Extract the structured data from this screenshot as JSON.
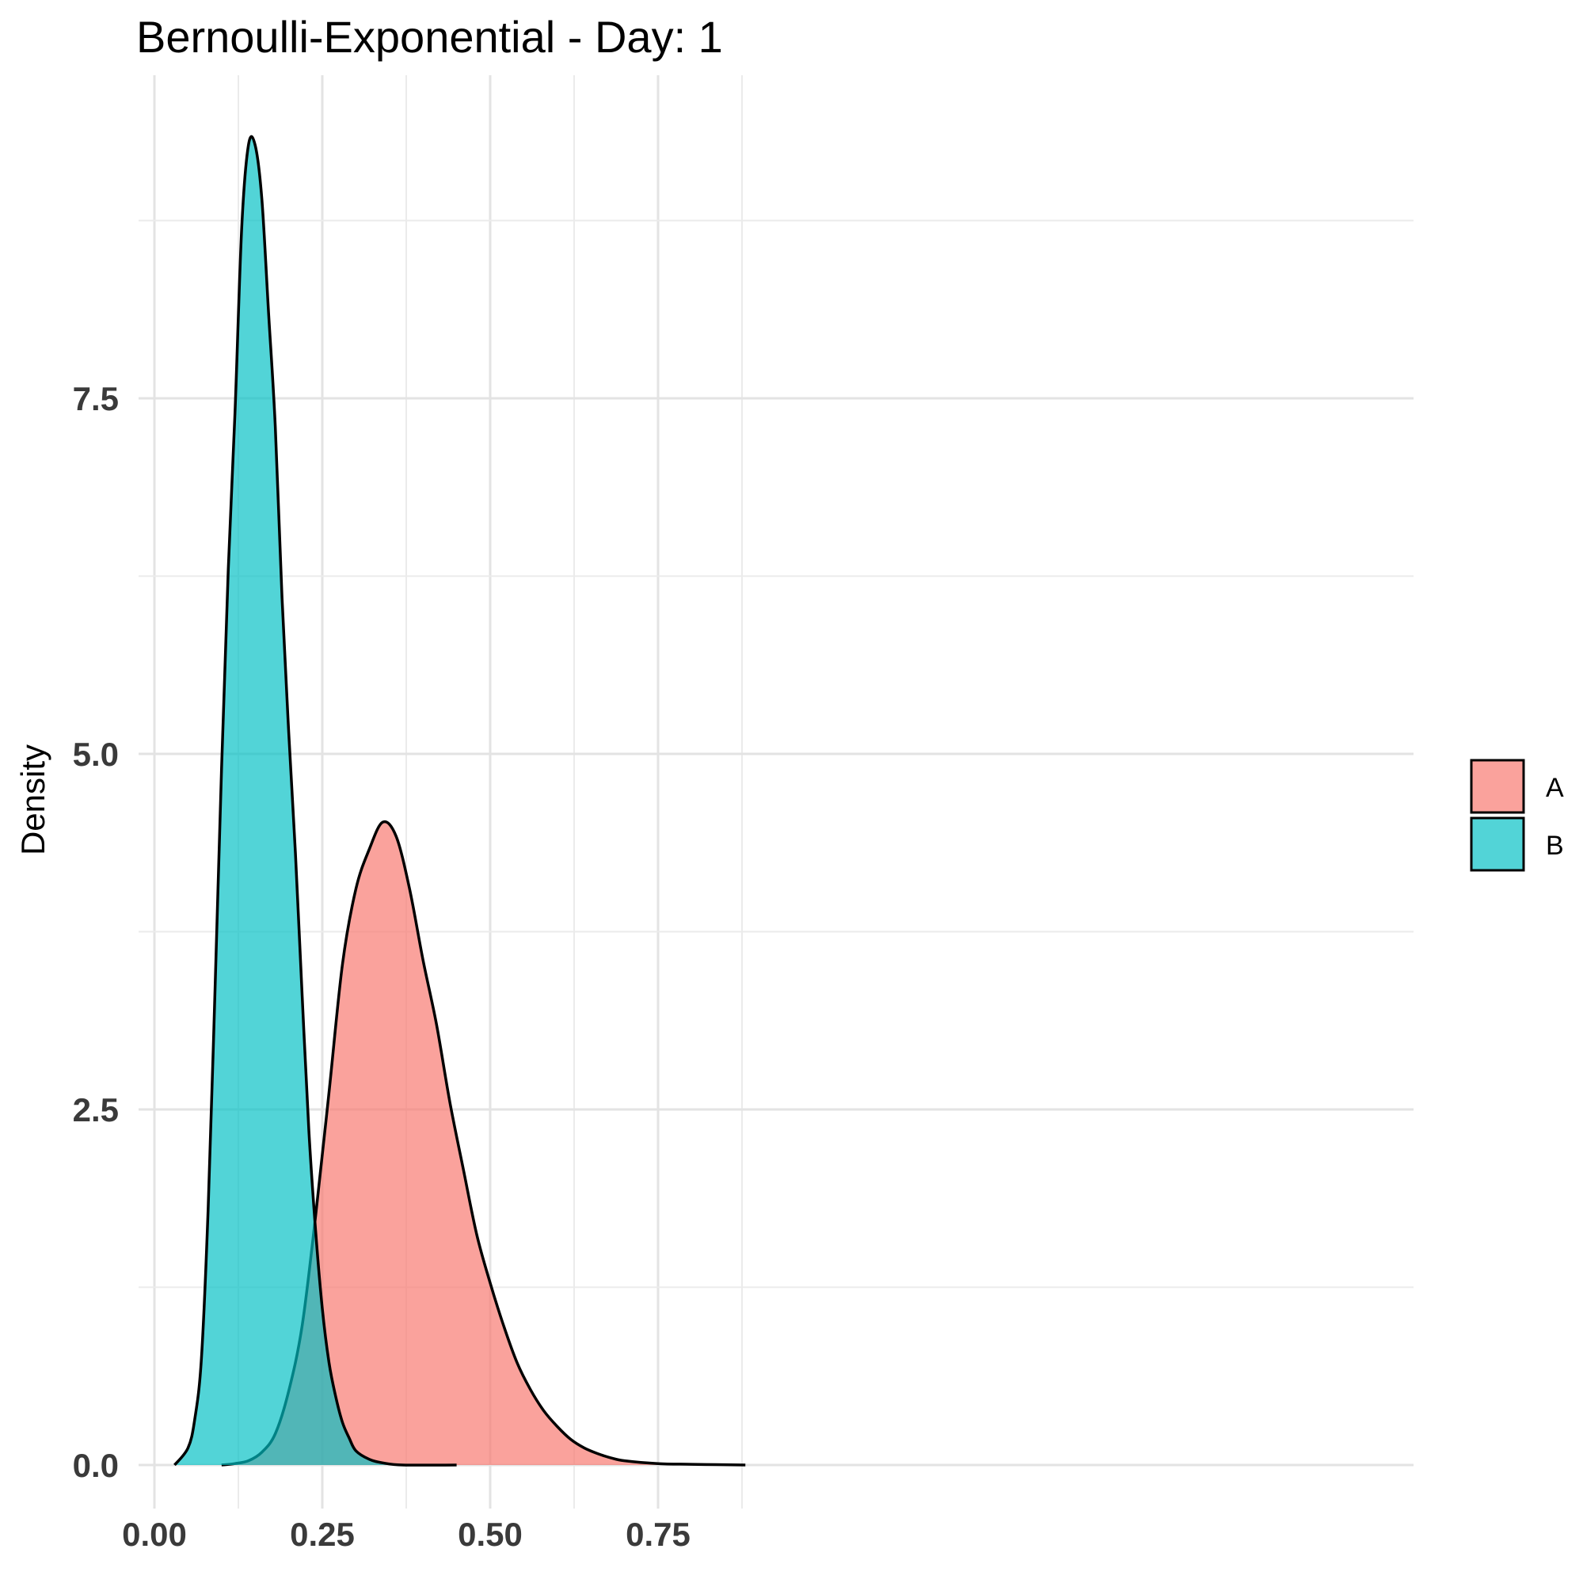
{
  "chart_data": {
    "type": "area",
    "title": "Bernoulli-Exponential - Day: 1",
    "xlabel": "",
    "ylabel": "Density",
    "xlim": [
      0.0,
      0.9
    ],
    "ylim": [
      0,
      9.2
    ],
    "x_ticks": [
      "0.00",
      "0.25",
      "0.50",
      "0.75"
    ],
    "y_ticks": [
      "0.0",
      "2.5",
      "5.0",
      "7.5"
    ],
    "grid": true,
    "legend_position": "right",
    "series": [
      {
        "name": "A",
        "color": "#F8766D",
        "points": [
          [
            0.1,
            0.0
          ],
          [
            0.12,
            0.01
          ],
          [
            0.14,
            0.03
          ],
          [
            0.16,
            0.09
          ],
          [
            0.18,
            0.22
          ],
          [
            0.2,
            0.52
          ],
          [
            0.22,
            0.98
          ],
          [
            0.24,
            1.75
          ],
          [
            0.26,
            2.62
          ],
          [
            0.28,
            3.52
          ],
          [
            0.3,
            4.05
          ],
          [
            0.32,
            4.33
          ],
          [
            0.34,
            4.52
          ],
          [
            0.36,
            4.42
          ],
          [
            0.38,
            4.05
          ],
          [
            0.4,
            3.55
          ],
          [
            0.42,
            3.1
          ],
          [
            0.44,
            2.55
          ],
          [
            0.46,
            2.08
          ],
          [
            0.48,
            1.62
          ],
          [
            0.5,
            1.28
          ],
          [
            0.52,
            0.98
          ],
          [
            0.54,
            0.72
          ],
          [
            0.56,
            0.53
          ],
          [
            0.58,
            0.38
          ],
          [
            0.6,
            0.27
          ],
          [
            0.62,
            0.18
          ],
          [
            0.64,
            0.12
          ],
          [
            0.66,
            0.08
          ],
          [
            0.68,
            0.05
          ],
          [
            0.7,
            0.03
          ],
          [
            0.75,
            0.01
          ],
          [
            0.8,
            0.005
          ],
          [
            0.88,
            0.0
          ]
        ]
      },
      {
        "name": "B",
        "color": "#00BFC4",
        "points": [
          [
            0.03,
            0.0
          ],
          [
            0.05,
            0.12
          ],
          [
            0.06,
            0.32
          ],
          [
            0.07,
            0.75
          ],
          [
            0.08,
            1.8
          ],
          [
            0.09,
            3.3
          ],
          [
            0.1,
            4.9
          ],
          [
            0.11,
            6.3
          ],
          [
            0.12,
            7.4
          ],
          [
            0.13,
            8.7
          ],
          [
            0.14,
            9.28
          ],
          [
            0.15,
            9.28
          ],
          [
            0.16,
            8.9
          ],
          [
            0.17,
            8.1
          ],
          [
            0.18,
            7.3
          ],
          [
            0.19,
            6.1
          ],
          [
            0.2,
            5.15
          ],
          [
            0.21,
            4.3
          ],
          [
            0.22,
            3.3
          ],
          [
            0.23,
            2.35
          ],
          [
            0.24,
            1.65
          ],
          [
            0.25,
            1.1
          ],
          [
            0.26,
            0.72
          ],
          [
            0.27,
            0.48
          ],
          [
            0.28,
            0.3
          ],
          [
            0.29,
            0.19
          ],
          [
            0.3,
            0.1
          ],
          [
            0.32,
            0.04
          ],
          [
            0.34,
            0.015
          ],
          [
            0.37,
            0.0
          ],
          [
            0.45,
            0.0
          ]
        ]
      }
    ]
  }
}
